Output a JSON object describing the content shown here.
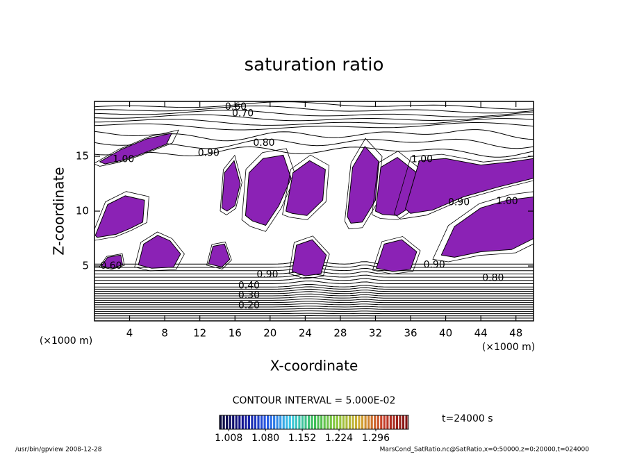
{
  "chart_data": {
    "type": "contour",
    "title": "saturation ratio",
    "x_label": "X-coordinate",
    "y_label": "Z-coordinate",
    "x_unit": "(×1000 m)",
    "y_unit": "(×1000 m)",
    "xlim": [
      0,
      50
    ],
    "ylim": [
      0,
      20
    ],
    "xticks": [
      4,
      8,
      12,
      16,
      20,
      24,
      28,
      32,
      36,
      40,
      44,
      48
    ],
    "yticks": [
      5,
      10,
      15
    ],
    "shade_color": "#8b22b5",
    "regions": [
      {
        "x": [
          0.6,
          3,
          6,
          8.8,
          8.2,
          5,
          3,
          1.2
        ],
        "z": [
          14.5,
          15.6,
          16.6,
          17.1,
          16.1,
          15.1,
          14.6,
          14.3
        ]
      },
      {
        "x": [
          0.1,
          1.5,
          3.5,
          5.7,
          5.5,
          4,
          2.5,
          0.3
        ],
        "z": [
          7.8,
          10.6,
          11.4,
          11,
          9,
          8.4,
          7.9,
          7.6
        ]
      },
      {
        "x": [
          5,
          5.6,
          7.2,
          8.6,
          9.8,
          9,
          6.5
        ],
        "z": [
          5.1,
          7,
          7.8,
          7.3,
          6.1,
          4.9,
          4.8
        ]
      },
      {
        "x": [
          14.5,
          14.8,
          15.9,
          16.6,
          16,
          15.1
        ],
        "z": [
          10.3,
          13.5,
          14.6,
          12.5,
          10.5,
          10
        ]
      },
      {
        "x": [
          17.2,
          17.6,
          19.2,
          21.5,
          22.4,
          21,
          19.5,
          18
        ],
        "z": [
          9.6,
          13.5,
          14.8,
          15.1,
          13,
          10.5,
          8.7,
          9.1
        ]
      },
      {
        "x": [
          21.8,
          22.6,
          24.5,
          26.3,
          26,
          24.2,
          22.5
        ],
        "z": [
          10,
          13.5,
          14.6,
          13.8,
          11,
          9.6,
          9.8
        ]
      },
      {
        "x": [
          28.8,
          29.4,
          30.8,
          32.4,
          32,
          30.5,
          29.2
        ],
        "z": [
          9.5,
          14,
          15.9,
          14.5,
          11,
          9,
          8.9
        ]
      },
      {
        "x": [
          32,
          32.6,
          34.5,
          36.7,
          36.2,
          34.5,
          32.8
        ],
        "z": [
          10,
          14,
          14.9,
          13.5,
          10.5,
          9.6,
          9.7
        ]
      },
      {
        "x": [
          35.4,
          37,
          40,
          44,
          47.5,
          50,
          50,
          46,
          42,
          38.5,
          36
        ],
        "z": [
          10.2,
          14.6,
          14.8,
          14.2,
          14.5,
          14.8,
          13,
          12.2,
          11.3,
          10.1,
          9.8
        ]
      },
      {
        "x": [
          39.5,
          41,
          44,
          47,
          50,
          50,
          47.5,
          44,
          41
        ],
        "z": [
          6,
          8.6,
          10.3,
          11,
          11.3,
          7.5,
          6.5,
          6.3,
          5.8
        ]
      },
      {
        "x": [
          13,
          13.5,
          14.8,
          15.4,
          14.5
        ],
        "z": [
          5.2,
          6.8,
          7,
          5.6,
          4.9
        ]
      },
      {
        "x": [
          22.5,
          23,
          24.8,
          26.4,
          25.8,
          24
        ],
        "z": [
          4.5,
          6.9,
          7.4,
          6,
          4.3,
          4.1
        ]
      },
      {
        "x": [
          32.1,
          33,
          35,
          36.7,
          36,
          34
        ],
        "z": [
          4.8,
          7,
          7.4,
          6.3,
          4.7,
          4.5
        ]
      },
      {
        "x": [
          0.8,
          1.5,
          3,
          3.2,
          2
        ],
        "z": [
          5,
          5.8,
          6,
          5.1,
          4.8
        ]
      }
    ],
    "contour_labels": [
      {
        "value": 0.6,
        "label": "0.60",
        "x": 16.1,
        "z": 19.5
      },
      {
        "value": 0.7,
        "label": "0.70",
        "x": 16.9,
        "z": 18.9
      },
      {
        "value": 0.8,
        "label": "0.80",
        "x": 19.3,
        "z": 16.2
      },
      {
        "value": 0.9,
        "label": "0.90",
        "x": 13,
        "z": 15.3
      },
      {
        "value": 1,
        "label": "1.00",
        "x": 3.3,
        "z": 14.7
      },
      {
        "value": 1,
        "label": "1.00",
        "x": 37.3,
        "z": 14.7
      },
      {
        "value": 0.9,
        "label": "0.90",
        "x": 41.5,
        "z": 10.8
      },
      {
        "value": 1,
        "label": "1.00",
        "x": 47,
        "z": 10.9
      },
      {
        "value": 0.9,
        "label": "0.90",
        "x": 38.7,
        "z": 5.1
      },
      {
        "value": 0.8,
        "label": "0.80",
        "x": 45.4,
        "z": 3.9
      },
      {
        "value": 0.9,
        "label": "0.90",
        "x": 19.7,
        "z": 4.2
      },
      {
        "value": 0.4,
        "label": "0.40",
        "x": 17.6,
        "z": 3.2
      },
      {
        "value": 0.3,
        "label": "0.30",
        "x": 17.6,
        "z": 2.3
      },
      {
        "value": 0.2,
        "label": "0.20",
        "x": 17.6,
        "z": 1.4
      },
      {
        "value": 0.6,
        "label": "0.60",
        "x": 1.9,
        "z": 5
      }
    ],
    "contour_interval": "CONTOUR INTERVAL = 5.000E-02",
    "time_label": "t=24000 s",
    "colorbar": {
      "clim": [
        0.99,
        1.36
      ],
      "ticks": [
        1.008,
        {
          "value": 1.08,
          "label": "1.080"
        },
        1.152,
        1.224,
        1.296
      ]
    },
    "footer_left": "/usr/bin/gpview   2008-12-28",
    "footer_right": "MarsCond_SatRatio.nc@SatRatio,x=0:50000,z=0:20000,t=024000"
  }
}
